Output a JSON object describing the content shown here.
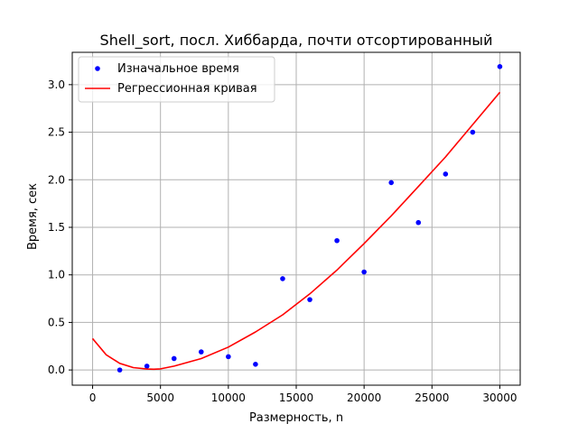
{
  "chart_data": {
    "type": "scatter",
    "title": "Shell_sort, посл. Хиббарда, почти отсортированный",
    "xlabel": "Размерность, n",
    "ylabel": "Время, сек",
    "xlim": [
      -1500,
      31500
    ],
    "ylim": [
      -0.16,
      3.34
    ],
    "xticks": [
      0,
      5000,
      10000,
      15000,
      20000,
      25000,
      30000
    ],
    "xtick_labels": [
      "0",
      "5000",
      "10000",
      "15000",
      "20000",
      "25000",
      "30000"
    ],
    "yticks": [
      0.0,
      0.5,
      1.0,
      1.5,
      2.0,
      2.5,
      3.0
    ],
    "ytick_labels": [
      "0.0",
      "0.5",
      "1.0",
      "1.5",
      "2.0",
      "2.5",
      "3.0"
    ],
    "grid": true,
    "legend_position": "top-left",
    "series": [
      {
        "name": "Изначальное время",
        "kind": "scatter",
        "color": "#0000ff",
        "x": [
          2000,
          4000,
          6000,
          8000,
          10000,
          12000,
          14000,
          16000,
          18000,
          20000,
          22000,
          24000,
          26000,
          28000,
          30000
        ],
        "y": [
          0.0,
          0.04,
          0.12,
          0.19,
          0.14,
          0.06,
          0.96,
          0.74,
          1.36,
          1.03,
          1.97,
          1.55,
          2.06,
          2.5,
          3.19
        ]
      },
      {
        "name": "Регрессионная кривая",
        "kind": "line",
        "color": "#ff0000",
        "x": [
          0,
          1000,
          2000,
          3000,
          4000,
          4500,
          5000,
          6000,
          8000,
          10000,
          12000,
          14000,
          16000,
          18000,
          20000,
          22000,
          24000,
          26000,
          28000,
          30000
        ],
        "y": [
          0.33,
          0.16,
          0.07,
          0.025,
          0.01,
          0.008,
          0.012,
          0.04,
          0.12,
          0.24,
          0.4,
          0.58,
          0.8,
          1.05,
          1.33,
          1.62,
          1.93,
          2.24,
          2.58,
          2.92
        ]
      }
    ]
  }
}
